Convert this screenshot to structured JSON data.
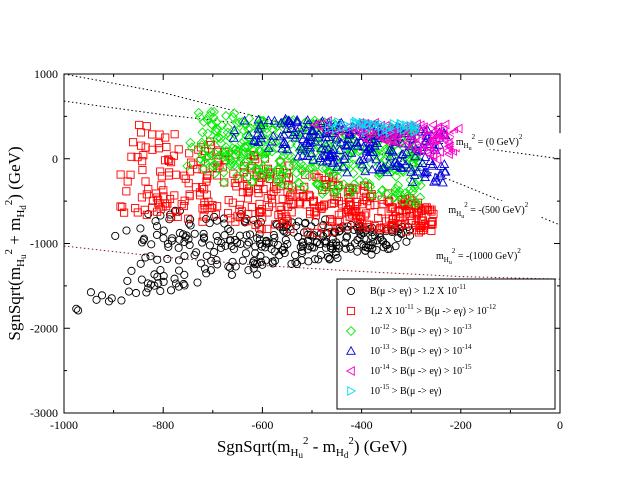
{
  "chart_data": {
    "type": "scatter",
    "xlabel": "SgnSqrt(m_Hu^2 - m_Hd^2) (GeV)",
    "ylabel": "SgnSqrt(m_Hu^2 + m_Hd^2) (GeV)",
    "xlim": [
      -1000,
      0
    ],
    "ylim": [
      -3000,
      1000
    ],
    "x_ticks": [
      -1000,
      -800,
      -600,
      -400,
      -200,
      0
    ],
    "y_ticks": [
      1000,
      0,
      -1000,
      -2000,
      -3000
    ],
    "legend_position": "bottom-right",
    "series": [
      {
        "name": "B(mu->e gamma) > 1.2 X 10^-11",
        "marker": "circle",
        "color": "#000000",
        "region": {
          "x_left": [
            -980,
            -880,
            -840,
            -780
          ],
          "x_right": -300,
          "top_left": [
            -1800,
            -450,
            -650,
            -700
          ],
          "top_right": -800,
          "bottom_left": [
            -1800,
            -1650,
            -1520,
            -1400
          ],
          "bottom_right": -1050,
          "count": 320
        }
      },
      {
        "name": "1.2 X 10^-11 > B(mu->e gamma) > 10^-12",
        "marker": "square",
        "color": "#ff0000",
        "region": {
          "x_left": [
            -890,
            -880,
            -840,
            -760
          ],
          "x_right": -250,
          "top_left": [
            -450,
            500,
            400,
            300
          ],
          "top_right": -550,
          "bottom_left": [
            -700,
            -600,
            -800,
            -900
          ],
          "bottom_right": -900,
          "count": 420
        }
      },
      {
        "name": "10^-12 > B(mu->e gamma) > 10^-13",
        "marker": "diamond",
        "color": "#00ee00",
        "region": {
          "x_left": [
            -780,
            -760,
            -720,
            -680
          ],
          "x_right": -280,
          "top_left": [
            150,
            600,
            560,
            520
          ],
          "top_right": 350,
          "bottom_left": [
            -120,
            -150,
            -250,
            -350
          ],
          "bottom_right": -550,
          "count": 420
        }
      },
      {
        "name": "10^-13 > B(mu->e gamma) > 10^-14",
        "marker": "triangle-up",
        "color": "#0000dd",
        "region": {
          "x_left": [
            -680,
            -600,
            -550,
            -450
          ],
          "x_right": -230,
          "top_left": [
            500,
            500,
            480,
            450
          ],
          "top_right": 350,
          "bottom_left": [
            200,
            100,
            0,
            -150
          ],
          "bottom_right": -350,
          "count": 260
        }
      },
      {
        "name": "10^-14 > B(mu->e gamma) > 10^-15",
        "marker": "triangle-left",
        "color": "#ff00cc",
        "region": {
          "x_left": [
            -500,
            -450,
            -380,
            -320
          ],
          "x_right": -200,
          "top_left": [
            450,
            450,
            430,
            420
          ],
          "top_right": 400,
          "bottom_left": [
            350,
            300,
            150,
            0
          ],
          "bottom_right": -50,
          "count": 110
        }
      },
      {
        "name": "10^-15 > B(mu->e gamma)",
        "marker": "triangle-right",
        "color": "#00ddee",
        "region": {
          "x_left": [
            -510,
            -470,
            -420,
            -380
          ],
          "x_right": -280,
          "top_left": [
            460,
            450,
            440,
            430
          ],
          "top_right": 420,
          "bottom_left": [
            360,
            340,
            320,
            300
          ],
          "bottom_right": 300,
          "count": 40
        }
      }
    ],
    "curves": [
      {
        "name": "m_Hu^2 = (0 GeV)^2",
        "style": "dotted",
        "color": "#000000",
        "points": [
          [
            -1000,
            680
          ],
          [
            -800,
            520
          ],
          [
            -600,
            390
          ],
          [
            -400,
            270
          ],
          [
            -200,
            160
          ],
          [
            0,
            0
          ]
        ]
      },
      {
        "name": "m_Hu^2 = -(500 GeV)^2",
        "style": "dotted",
        "color": "#000000",
        "points": [
          [
            -1000,
            1000
          ],
          [
            -800,
            780
          ],
          [
            -600,
            480
          ],
          [
            -400,
            150
          ],
          [
            -200,
            -300
          ],
          [
            0,
            -780
          ]
        ]
      },
      {
        "name": "m_Hu^2 = -(1000 GeV)^2",
        "style": "dotted",
        "color": "#8b1a1a",
        "points": [
          [
            -1000,
            -1030
          ],
          [
            -800,
            -1160
          ],
          [
            -600,
            -1260
          ],
          [
            -400,
            -1330
          ],
          [
            -200,
            -1390
          ],
          [
            0,
            -1420
          ]
        ]
      }
    ],
    "curve_labels": [
      {
        "html": "m<tspan font-size='7' baseline-shift='-3'>H<tspan font-size='6' baseline-shift='-2'>u</tspan></tspan><tspan font-size='7' baseline-shift='6'>2</tspan> = (0 GeV)<tspan font-size='7' baseline-shift='6'>2</tspan>",
        "x": -210,
        "y": 160
      },
      {
        "html": "m<tspan font-size='7' baseline-shift='-3'>H<tspan font-size='6' baseline-shift='-2'>u</tspan></tspan><tspan font-size='7' baseline-shift='6'>2</tspan> = -(500 GeV)<tspan font-size='7' baseline-shift='6'>2</tspan>",
        "x": -225,
        "y": -640
      },
      {
        "html": "m<tspan font-size='7' baseline-shift='-3'>H<tspan font-size='6' baseline-shift='-2'>u</tspan></tspan><tspan font-size='7' baseline-shift='6'>2</tspan> = -(1000 GeV)<tspan font-size='7' baseline-shift='6'>2</tspan>",
        "x": -250,
        "y": -1180
      }
    ]
  },
  "legend": [
    "B(μ -> eγ) > 1.2 X 10^-11",
    "1.2 X 10^-11 > B(μ -> eγ) > 10^-12",
    "10^-12 > B(μ -> eγ) > 10^-13",
    "10^-13 > B(μ -> eγ) > 10^-14",
    "10^-14 > B(μ -> eγ) > 10^-15",
    "10^-15 > B(μ -> eγ)"
  ],
  "labels": {
    "x_title": "SgnSqrt(m_Hu^2 - m_Hd^2) (GeV)",
    "y_title": "SgnSqrt(m_Hu^2 + m_Hd^2) (GeV)",
    "curve_0": "m_Hu^2 = (0 GeV)^2",
    "curve_1": "m_Hu^2 = -(500 GeV)^2",
    "curve_2": "m_Hu^2 = -(1000 GeV)^2"
  }
}
